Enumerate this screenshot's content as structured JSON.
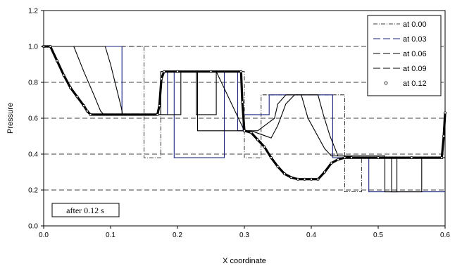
{
  "chart_data": {
    "type": "line",
    "title": "",
    "xlabel": "X coordinate",
    "ylabel": "Pressure",
    "xlim": [
      0.0,
      0.6
    ],
    "ylim": [
      0.0,
      1.2
    ],
    "xticks": [
      "0.0",
      "0.1",
      "0.2",
      "0.3",
      "0.4",
      "0.5",
      "0.6"
    ],
    "yticks": [
      "0.0",
      "0.2",
      "0.4",
      "0.6",
      "0.8",
      "1.0",
      "1.2"
    ],
    "grid": "horizontal dashed",
    "legend_position": "top-right",
    "annotation": "after 0.12 s",
    "series": [
      {
        "name": "at 0.00",
        "style": "dash-dot",
        "x": [
          0.0,
          0.15,
          0.15,
          0.175,
          0.175,
          0.3,
          0.3,
          0.325,
          0.325,
          0.45,
          0.45,
          0.475,
          0.475,
          0.6
        ],
        "y": [
          1.0,
          1.0,
          0.38,
          0.38,
          0.86,
          0.86,
          0.38,
          0.38,
          0.73,
          0.73,
          0.19,
          0.19,
          0.38,
          0.38
        ]
      },
      {
        "name": "at 0.03",
        "style": "dash",
        "color": "#1a237e",
        "x": [
          0.0,
          0.117,
          0.117,
          0.185,
          0.185,
          0.195,
          0.195,
          0.27,
          0.27,
          0.29,
          0.29,
          0.298,
          0.298,
          0.337,
          0.337,
          0.343,
          0.343,
          0.432,
          0.432,
          0.44,
          0.44,
          0.486,
          0.486,
          0.6
        ],
        "y": [
          1.0,
          1.0,
          0.62,
          0.62,
          0.86,
          0.86,
          0.38,
          0.38,
          0.86,
          0.86,
          0.53,
          0.53,
          0.62,
          0.62,
          0.73,
          0.73,
          0.73,
          0.73,
          0.38,
          0.38,
          0.38,
          0.38,
          0.19,
          0.19
        ]
      },
      {
        "name": "at 0.06",
        "style": "dash",
        "x": [
          0.0,
          0.092,
          0.1,
          0.108,
          0.116,
          0.118,
          0.205,
          0.205,
          0.228,
          0.228,
          0.245,
          0.258,
          0.258,
          0.3,
          0.32,
          0.345,
          0.35,
          0.362,
          0.37,
          0.41,
          0.418,
          0.428,
          0.44,
          0.51,
          0.51,
          0.528,
          0.528,
          0.6
        ],
        "y": [
          1.0,
          1.0,
          0.9,
          0.78,
          0.66,
          0.62,
          0.62,
          0.86,
          0.86,
          0.62,
          0.62,
          0.62,
          0.86,
          0.53,
          0.53,
          0.6,
          0.68,
          0.73,
          0.73,
          0.73,
          0.62,
          0.5,
          0.39,
          0.39,
          0.19,
          0.19,
          0.38,
          0.38
        ]
      },
      {
        "name": "at 0.09",
        "style": "dash",
        "x": [
          0.0,
          0.045,
          0.06,
          0.075,
          0.085,
          0.09,
          0.175,
          0.175,
          0.23,
          0.23,
          0.255,
          0.295,
          0.31,
          0.34,
          0.35,
          0.362,
          0.375,
          0.385,
          0.395,
          0.42,
          0.43,
          0.45,
          0.47,
          0.52,
          0.52,
          0.565,
          0.565,
          0.6
        ],
        "y": [
          1.0,
          1.0,
          0.86,
          0.73,
          0.64,
          0.62,
          0.62,
          0.86,
          0.86,
          0.53,
          0.53,
          0.53,
          0.53,
          0.49,
          0.56,
          0.68,
          0.73,
          0.73,
          0.6,
          0.43,
          0.39,
          0.39,
          0.38,
          0.38,
          0.19,
          0.19,
          0.38,
          0.38
        ]
      },
      {
        "name": "at 0.12",
        "style": "markers",
        "x": [
          0.0,
          0.01,
          0.02,
          0.03,
          0.04,
          0.05,
          0.06,
          0.065,
          0.07,
          0.17,
          0.173,
          0.176,
          0.18,
          0.2,
          0.25,
          0.295,
          0.297,
          0.3,
          0.31,
          0.32,
          0.33,
          0.34,
          0.35,
          0.36,
          0.37,
          0.38,
          0.39,
          0.4,
          0.41,
          0.42,
          0.43,
          0.44,
          0.45,
          0.46,
          0.5,
          0.55,
          0.595,
          0.598,
          0.6
        ],
        "y": [
          1.0,
          1.0,
          0.92,
          0.84,
          0.77,
          0.72,
          0.67,
          0.64,
          0.62,
          0.62,
          0.67,
          0.82,
          0.86,
          0.86,
          0.86,
          0.86,
          0.69,
          0.53,
          0.52,
          0.48,
          0.44,
          0.38,
          0.33,
          0.29,
          0.27,
          0.26,
          0.26,
          0.26,
          0.26,
          0.3,
          0.35,
          0.37,
          0.38,
          0.38,
          0.38,
          0.38,
          0.38,
          0.5,
          0.63
        ]
      }
    ]
  }
}
